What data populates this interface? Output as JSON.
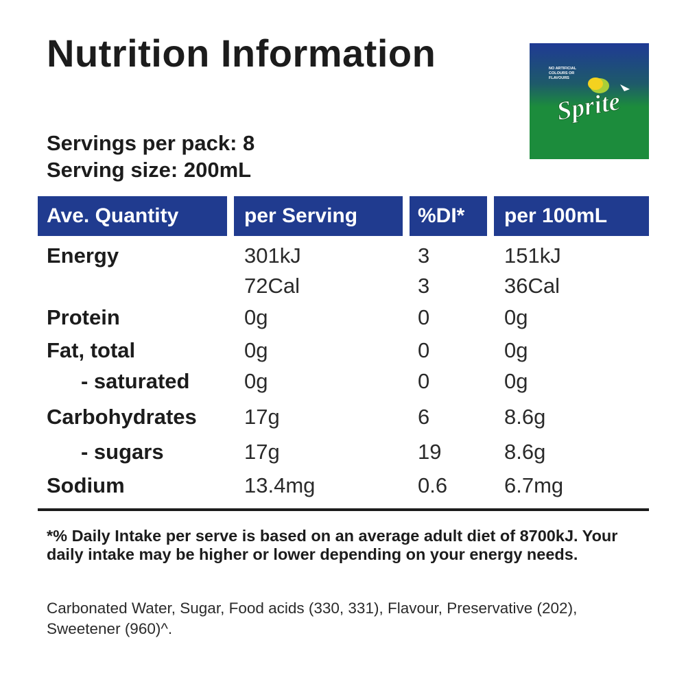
{
  "title": "Nutrition Information",
  "logo": {
    "brand_text": "Sprite",
    "tagline": "NO ARTIFICIAL COLOURS OR FLAVOURS",
    "colors": {
      "top": "#1f3a94",
      "bottom": "#1c8c3c",
      "text": "#ffffff",
      "lemon": "#f4d21f",
      "lime": "#a9cf38"
    }
  },
  "servings_per_pack": "Servings per pack: 8",
  "serving_size": "Serving size: 200mL",
  "table": {
    "headers": [
      "Ave. Quantity",
      "per Serving",
      "%DI*",
      "per 100mL"
    ],
    "header_color": "#203b8f",
    "rows": [
      {
        "name": "Energy",
        "per_serving": "301kJ",
        "di": "3",
        "per_100ml": "151kJ",
        "indent": false
      },
      {
        "name": "",
        "per_serving": "72Cal",
        "di": "3",
        "per_100ml": "36Cal",
        "indent": false
      },
      {
        "name": "Protein",
        "per_serving": "0g",
        "di": "0",
        "per_100ml": "0g",
        "indent": false
      },
      {
        "name": "Fat, total",
        "per_serving": "0g",
        "di": "0",
        "per_100ml": "0g",
        "indent": false
      },
      {
        "name": "- saturated",
        "per_serving": "0g",
        "di": "0",
        "per_100ml": "0g",
        "indent": true
      },
      {
        "name": "Carbohydrates",
        "per_serving": "17g",
        "di": "6",
        "per_100ml": "8.6g",
        "indent": false
      },
      {
        "name": "- sugars",
        "per_serving": "17g",
        "di": "19",
        "per_100ml": "8.6g",
        "indent": true
      },
      {
        "name": "Sodium",
        "per_serving": "13.4mg",
        "di": "0.6",
        "per_100ml": "6.7mg",
        "indent": false
      }
    ]
  },
  "footnote": "*% Daily Intake per serve is based on an average adult diet of 8700kJ. Your daily intake may be higher or lower depending on your energy needs.",
  "ingredients": "Carbonated Water, Sugar, Food acids (330, 331), Flavour, Preservative (202), Sweetener (960)^."
}
